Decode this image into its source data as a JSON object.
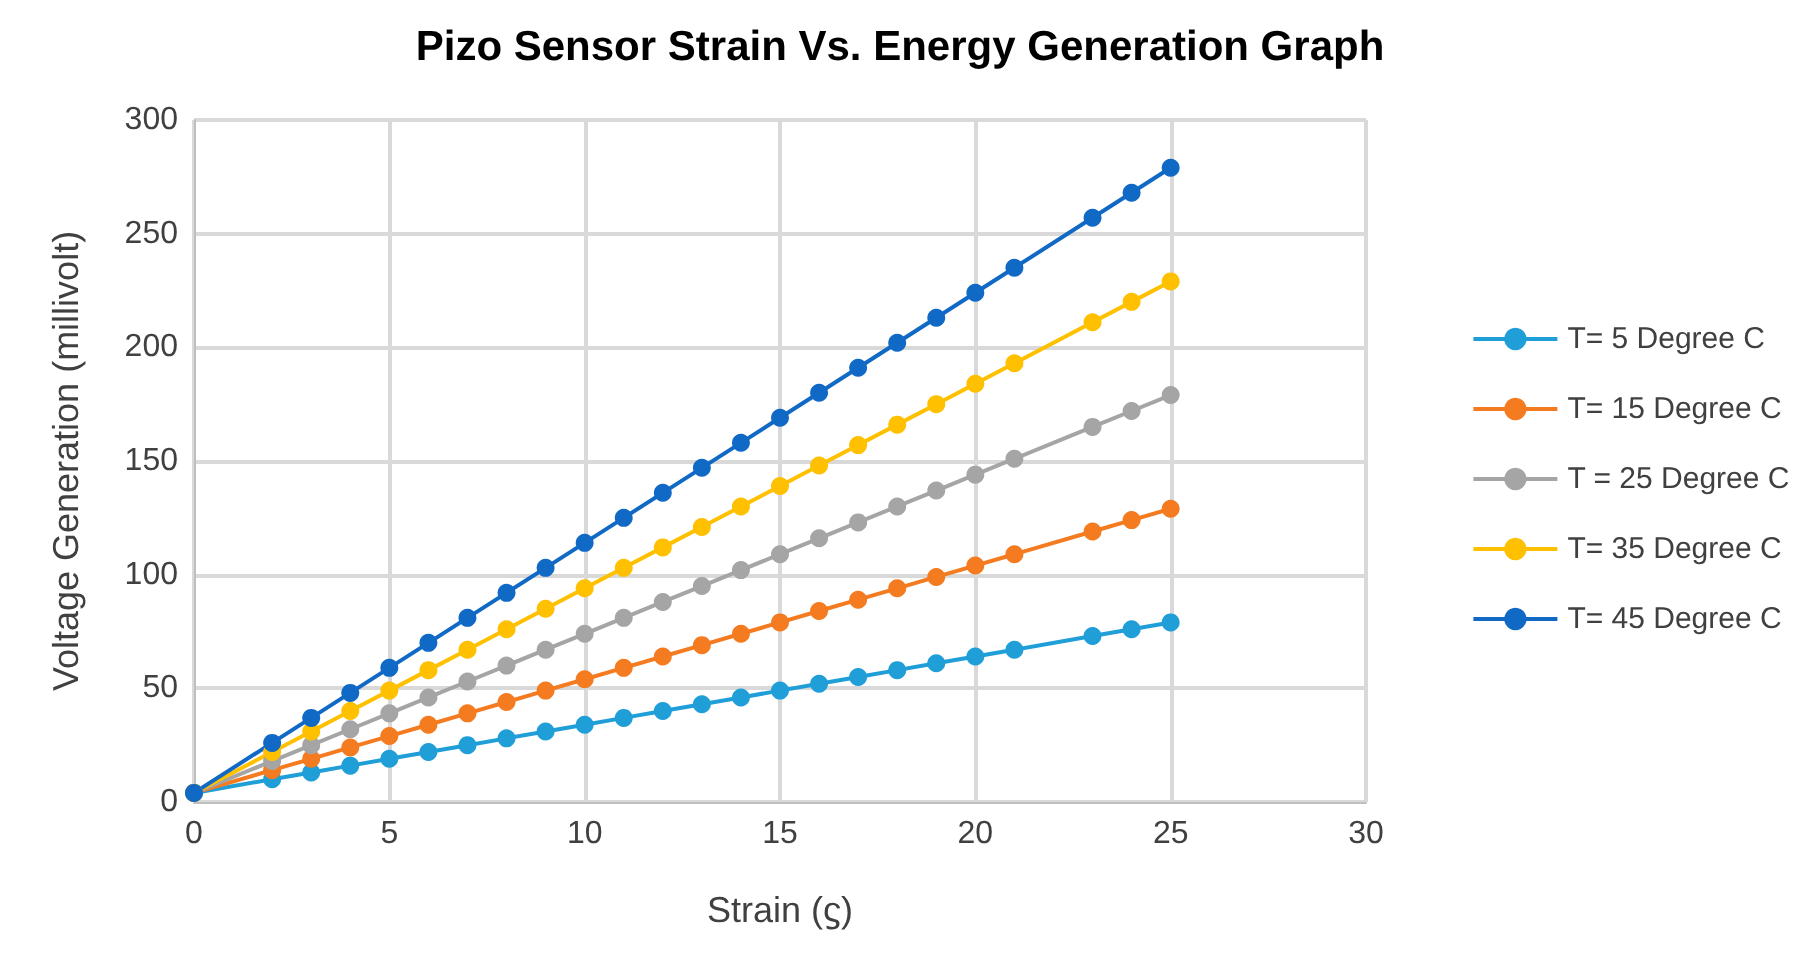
{
  "chart_data": {
    "type": "line",
    "title": "Pizo Sensor Strain Vs. Energy Generation Graph",
    "xlabel": "Strain (ϛ)",
    "ylabel": "Voltage Generation (millivolt)",
    "x": [
      0,
      2,
      3,
      4,
      5,
      6,
      7,
      8,
      9,
      10,
      11,
      12,
      13,
      14,
      15,
      16,
      17,
      18,
      19,
      20,
      21,
      23,
      24,
      25
    ],
    "series": [
      {
        "name": "T= 5 Degree C",
        "color": "#1f9ed8",
        "values": [
          4,
          10,
          13,
          16,
          19,
          22,
          25,
          28,
          31,
          34,
          37,
          40,
          43,
          46,
          49,
          52,
          55,
          58,
          61,
          64,
          67,
          73,
          76,
          79
        ]
      },
      {
        "name": "T= 15 Degree C",
        "color": "#f47b20",
        "values": [
          4,
          14,
          19,
          24,
          29,
          34,
          39,
          44,
          49,
          54,
          59,
          64,
          69,
          74,
          79,
          84,
          89,
          94,
          99,
          104,
          109,
          119,
          124,
          129
        ]
      },
      {
        "name": "T = 25 Degree C",
        "color": "#a5a5a5",
        "values": [
          4,
          18,
          25,
          32,
          39,
          46,
          53,
          60,
          67,
          74,
          81,
          88,
          95,
          102,
          109,
          116,
          123,
          130,
          137,
          144,
          151,
          165,
          172,
          179
        ]
      },
      {
        "name": "T= 35 Degree C",
        "color": "#ffc000",
        "values": [
          4,
          22,
          31,
          40,
          49,
          58,
          67,
          76,
          85,
          94,
          103,
          112,
          121,
          130,
          139,
          148,
          157,
          166,
          175,
          184,
          193,
          211,
          220,
          229
        ]
      },
      {
        "name": "T= 45 Degree C",
        "color": "#1169c6",
        "values": [
          4,
          26,
          37,
          48,
          59,
          70,
          81,
          92,
          103,
          114,
          125,
          136,
          147,
          158,
          169,
          180,
          191,
          202,
          213,
          224,
          235,
          257,
          268,
          279
        ]
      }
    ],
    "xlim": [
      0,
      30
    ],
    "xticks": [
      0,
      5,
      10,
      15,
      20,
      25,
      30
    ],
    "ylim": [
      0,
      300
    ],
    "yticks": [
      0,
      50,
      100,
      150,
      200,
      250,
      300
    ],
    "grid": true,
    "legend": "right",
    "marker": "circle",
    "line_style": "solid"
  }
}
